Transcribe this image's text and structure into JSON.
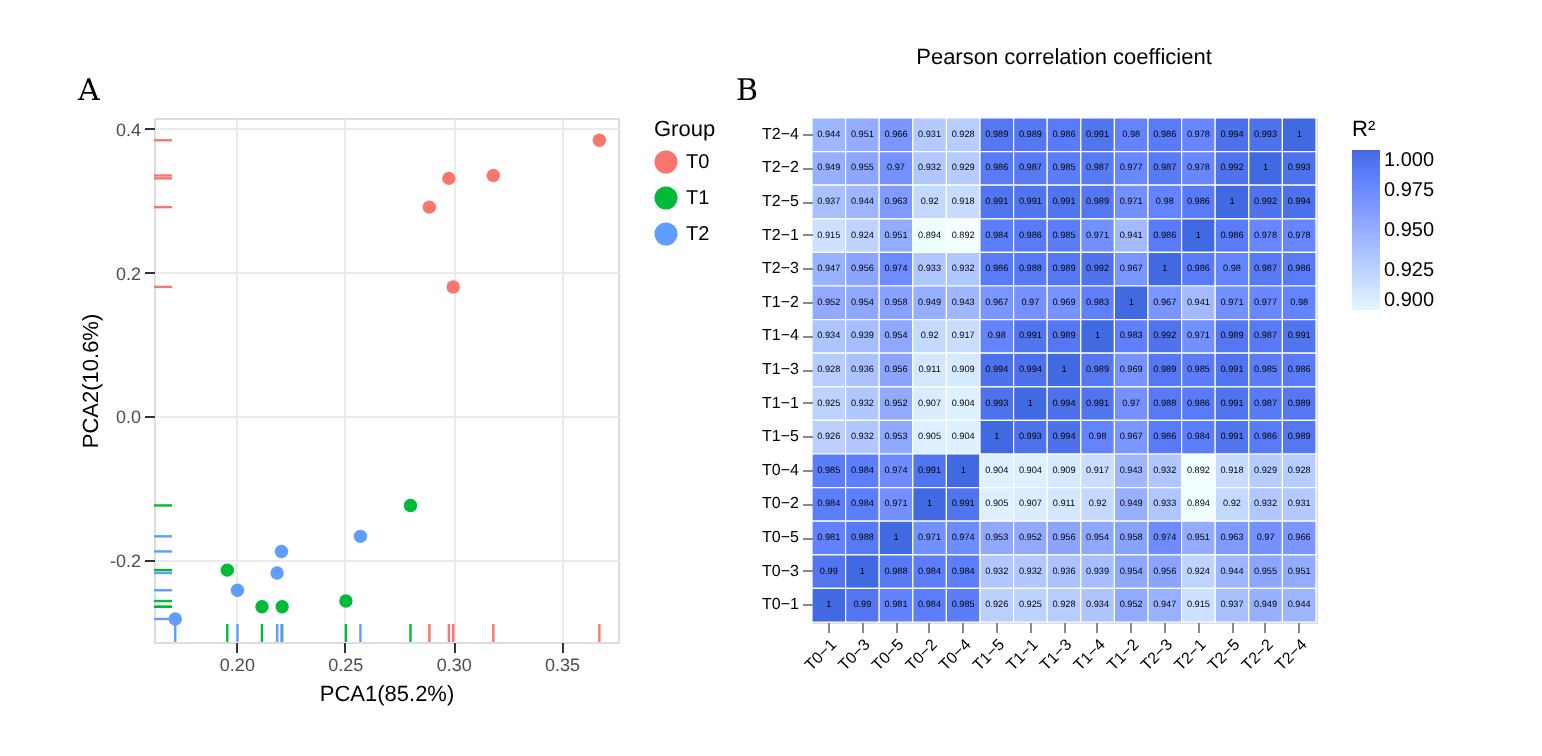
{
  "chart_data": [
    {
      "type": "scatter",
      "xlabel": "PCA1(85.2%)",
      "ylabel": "PCA2(10.6%)",
      "legend_title": "Group",
      "legend": "right",
      "grid": true,
      "marker": "circle",
      "annotations": [
        "A"
      ],
      "xlim": [
        0.162,
        0.376
      ],
      "ylim": [
        -0.314,
        0.415
      ],
      "xticks": [
        {
          "value": 0.2,
          "label": "0.20"
        },
        {
          "value": 0.25,
          "label": "0.25"
        },
        {
          "value": 0.3,
          "label": "0.30"
        },
        {
          "value": 0.35,
          "label": "0.35"
        }
      ],
      "yticks": [
        {
          "value": -0.2,
          "label": "-0.2"
        },
        {
          "value": 0.0,
          "label": "0.0"
        },
        {
          "value": 0.2,
          "label": "0.2"
        },
        {
          "value": 0.4,
          "label": "0.4"
        }
      ],
      "series": [
        {
          "name": "T0",
          "color": "#f8766d",
          "x": [
            0.289,
            0.298,
            0.3185,
            0.3674,
            0.3
          ],
          "values": [
            0.291,
            0.331,
            0.335,
            0.384,
            0.18
          ]
        },
        {
          "name": "T1",
          "color": "#00ba38",
          "x": [
            0.2803,
            0.1958,
            0.2118,
            0.2211,
            0.2505
          ],
          "values": [
            -0.124,
            -0.214,
            -0.265,
            -0.265,
            -0.257
          ]
        },
        {
          "name": "T2",
          "color": "#619cff",
          "x": [
            0.2572,
            0.2208,
            0.2188,
            0.2005,
            0.1718
          ],
          "values": [
            -0.167,
            -0.188,
            -0.218,
            -0.242,
            -0.282
          ]
        }
      ]
    },
    {
      "type": "heatmap",
      "title": "Pearson correlation coefficient",
      "clabel": "R²",
      "annotations": [
        "B"
      ],
      "data_labels": true,
      "clim": [
        0.9,
        1.0
      ],
      "cticks": [
        {
          "value": 0.9,
          "label": "0.900"
        },
        {
          "value": 0.925,
          "label": "0.925"
        },
        {
          "value": 0.95,
          "label": "0.950"
        },
        {
          "value": 0.975,
          "label": "0.975"
        },
        {
          "value": 1.0,
          "label": "1.000"
        }
      ],
      "categories": [
        "T0−1",
        "T0−3",
        "T0−5",
        "T0−2",
        "T0−4",
        "T1−5",
        "T1−1",
        "T1−3",
        "T1−4",
        "T1−2",
        "T2−3",
        "T2−1",
        "T2−5",
        "T2−2",
        "T2−4"
      ],
      "y_categories": [
        "T2−4",
        "T2−2",
        "T2−5",
        "T2−1",
        "T2−3",
        "T1−2",
        "T1−4",
        "T1−3",
        "T1−1",
        "T1−5",
        "T0−4",
        "T0−2",
        "T0−5",
        "T0−3",
        "T0−1"
      ],
      "cells": [
        [
          0.944,
          0.951,
          0.966,
          0.931,
          0.928,
          0.989,
          0.989,
          0.986,
          0.991,
          0.98,
          0.986,
          0.978,
          0.994,
          0.993,
          1
        ],
        [
          0.949,
          0.955,
          0.97,
          0.932,
          0.929,
          0.986,
          0.987,
          0.985,
          0.987,
          0.977,
          0.987,
          0.978,
          0.992,
          1,
          0.993
        ],
        [
          0.937,
          0.944,
          0.963,
          0.92,
          0.918,
          0.991,
          0.991,
          0.991,
          0.989,
          0.971,
          0.98,
          0.986,
          1,
          0.992,
          0.994
        ],
        [
          0.915,
          0.924,
          0.951,
          0.894,
          0.892,
          0.984,
          0.986,
          0.985,
          0.971,
          0.941,
          0.986,
          1,
          0.986,
          0.978,
          0.978
        ],
        [
          0.947,
          0.956,
          0.974,
          0.933,
          0.932,
          0.986,
          0.988,
          0.989,
          0.992,
          0.967,
          1,
          0.986,
          0.98,
          0.987,
          0.986
        ],
        [
          0.952,
          0.954,
          0.958,
          0.949,
          0.943,
          0.967,
          0.97,
          0.969,
          0.983,
          1,
          0.967,
          0.941,
          0.971,
          0.977,
          0.98
        ],
        [
          0.934,
          0.939,
          0.954,
          0.92,
          0.917,
          0.98,
          0.991,
          0.989,
          1,
          0.983,
          0.992,
          0.971,
          0.989,
          0.987,
          0.991
        ],
        [
          0.928,
          0.936,
          0.956,
          0.911,
          0.909,
          0.994,
          0.994,
          1,
          0.989,
          0.969,
          0.989,
          0.985,
          0.991,
          0.985,
          0.986
        ],
        [
          0.925,
          0.932,
          0.952,
          0.907,
          0.904,
          0.993,
          1,
          0.994,
          0.991,
          0.97,
          0.988,
          0.986,
          0.991,
          0.987,
          0.989
        ],
        [
          0.926,
          0.932,
          0.953,
          0.905,
          0.904,
          1,
          0.993,
          0.994,
          0.98,
          0.967,
          0.986,
          0.984,
          0.991,
          0.986,
          0.989
        ],
        [
          0.985,
          0.984,
          0.974,
          0.991,
          1,
          0.904,
          0.904,
          0.909,
          0.917,
          0.943,
          0.932,
          0.892,
          0.918,
          0.929,
          0.928
        ],
        [
          0.984,
          0.984,
          0.971,
          1,
          0.991,
          0.905,
          0.907,
          0.911,
          0.92,
          0.949,
          0.933,
          0.894,
          0.92,
          0.932,
          0.931
        ],
        [
          0.981,
          0.988,
          1,
          0.971,
          0.974,
          0.953,
          0.952,
          0.956,
          0.954,
          0.958,
          0.974,
          0.951,
          0.963,
          0.97,
          0.966
        ],
        [
          0.99,
          1,
          0.988,
          0.984,
          0.984,
          0.932,
          0.932,
          0.936,
          0.939,
          0.954,
          0.956,
          0.924,
          0.944,
          0.955,
          0.951
        ],
        [
          1,
          0.99,
          0.981,
          0.984,
          0.985,
          0.926,
          0.925,
          0.928,
          0.934,
          0.952,
          0.947,
          0.915,
          0.937,
          0.949,
          0.944
        ]
      ]
    }
  ]
}
